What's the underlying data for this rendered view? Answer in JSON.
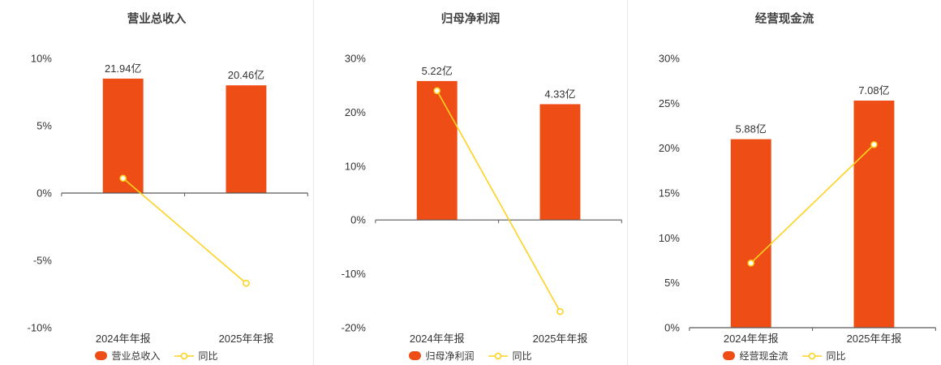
{
  "colors": {
    "bar": "#ee4e16",
    "line": "#ffd21f",
    "axis_line": "#595959",
    "text": "#333333",
    "title_text": "#404040",
    "divider": "#e8e8e8",
    "background": "#ffffff"
  },
  "chart_data": [
    {
      "type": "bar+line",
      "title": "营业总收入",
      "categories": [
        "2024年年报",
        "2025年年报"
      ],
      "axis": {
        "min": -10,
        "max": 10,
        "ticks": [
          {
            "v": 10,
            "label": "10%"
          },
          {
            "v": 5,
            "label": "5%"
          },
          {
            "v": 0,
            "label": "0%"
          },
          {
            "v": -5,
            "label": "-5%"
          },
          {
            "v": -10,
            "label": "-10%"
          }
        ]
      },
      "bar_series": {
        "name": "营业总收入",
        "value_labels": [
          "21.94亿",
          "20.46亿"
        ],
        "display_top_pct": [
          8.5,
          8.0
        ]
      },
      "line_series": {
        "name": "同比",
        "values_pct": [
          1.1,
          -6.7
        ]
      },
      "legend_position": "bottom",
      "grid": false
    },
    {
      "type": "bar+line",
      "title": "归母净利润",
      "categories": [
        "2024年年报",
        "2025年年报"
      ],
      "axis": {
        "min": -20,
        "max": 30,
        "ticks": [
          {
            "v": 30,
            "label": "30%"
          },
          {
            "v": 20,
            "label": "20%"
          },
          {
            "v": 10,
            "label": "10%"
          },
          {
            "v": 0,
            "label": "0%"
          },
          {
            "v": -10,
            "label": "-10%"
          },
          {
            "v": -20,
            "label": "-20%"
          }
        ]
      },
      "bar_series": {
        "name": "归母净利润",
        "value_labels": [
          "5.22亿",
          "4.33亿"
        ],
        "display_top_pct": [
          25.8,
          21.5
        ]
      },
      "line_series": {
        "name": "同比",
        "values_pct": [
          24.0,
          -17.0
        ]
      },
      "legend_position": "bottom",
      "grid": false
    },
    {
      "type": "bar+line",
      "title": "经营现金流",
      "categories": [
        "2024年年报",
        "2025年年报"
      ],
      "axis": {
        "min": 0,
        "max": 30,
        "ticks": [
          {
            "v": 30,
            "label": "30%"
          },
          {
            "v": 25,
            "label": "25%"
          },
          {
            "v": 20,
            "label": "20%"
          },
          {
            "v": 15,
            "label": "15%"
          },
          {
            "v": 10,
            "label": "10%"
          },
          {
            "v": 5,
            "label": "5%"
          },
          {
            "v": 0,
            "label": "0%"
          }
        ]
      },
      "bar_series": {
        "name": "经营现金流",
        "value_labels": [
          "5.88亿",
          "7.08亿"
        ],
        "display_top_pct": [
          21.0,
          25.3
        ]
      },
      "line_series": {
        "name": "同比",
        "values_pct": [
          7.2,
          20.4
        ]
      },
      "legend_position": "bottom",
      "grid": false
    }
  ]
}
